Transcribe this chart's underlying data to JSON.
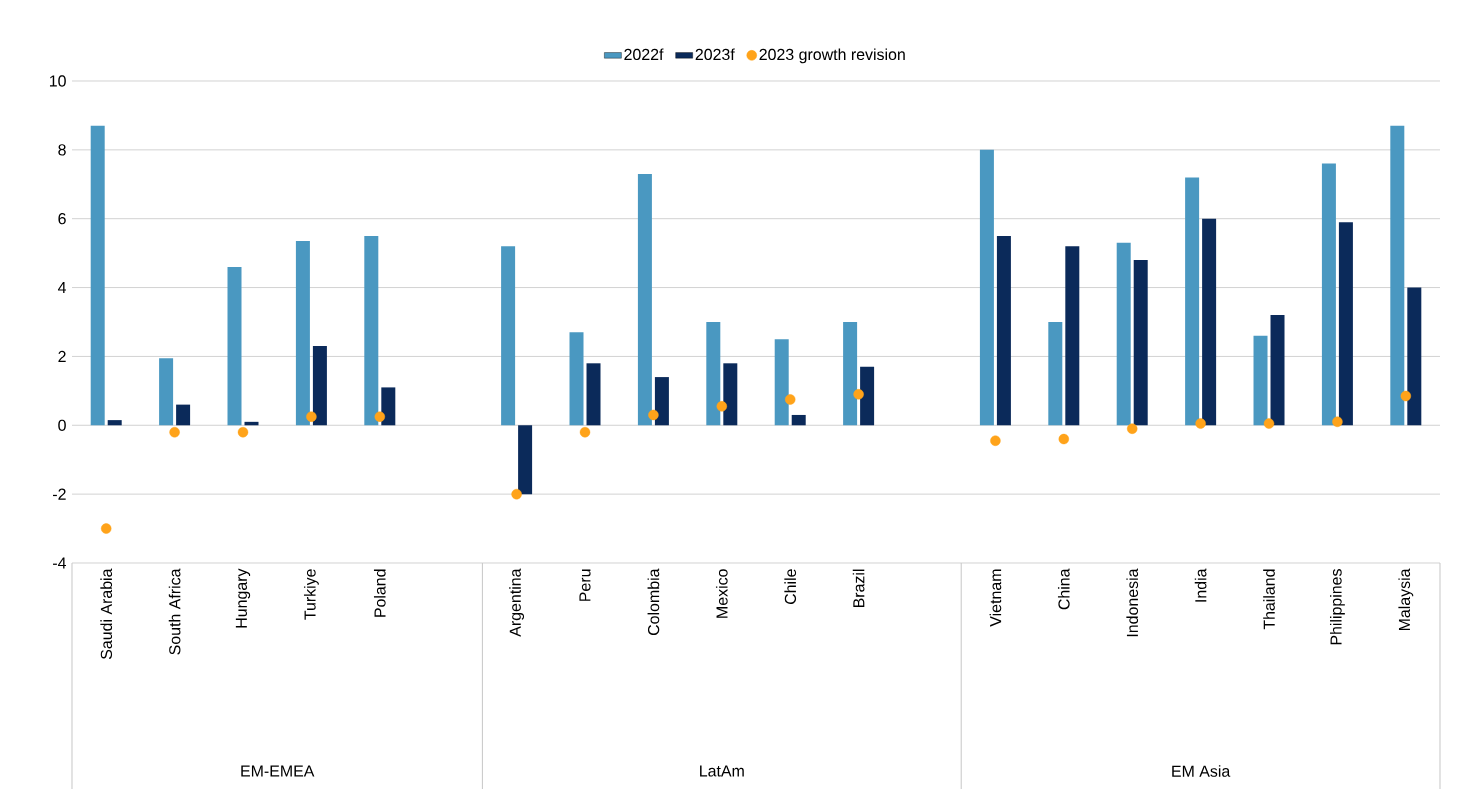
{
  "chart_data": {
    "type": "bar",
    "grid": "y",
    "legend": "top",
    "categories": [
      "Saudi Arabia",
      "South Africa",
      "Hungary",
      "Turkiye",
      "Poland",
      null,
      "Argentina",
      "Peru",
      "Colombia",
      "Mexico",
      "Chile",
      "Brazil",
      null,
      "Vietnam",
      "China",
      "Indonesia",
      "India",
      "Thailand",
      "Philippines",
      "Malaysia"
    ],
    "ylim": [
      -4,
      10
    ],
    "yticks": [
      -4,
      -2,
      0,
      2,
      4,
      6,
      8,
      10
    ],
    "annotations": [
      "EM-EMEA",
      "LatAm",
      "EM Asia"
    ],
    "series": [
      {
        "name": "2022f",
        "color": "#4a98c1",
        "values": [
          8.7,
          1.95,
          4.6,
          5.35,
          5.5,
          null,
          5.2,
          2.7,
          7.3,
          3.0,
          2.5,
          3.0,
          null,
          8.0,
          3.0,
          5.3,
          7.2,
          2.6,
          7.6,
          8.7
        ]
      },
      {
        "name": "2023f",
        "color": "#0b2a5a",
        "values": [
          0.15,
          0.6,
          0.1,
          2.3,
          1.1,
          null,
          -2.0,
          1.8,
          1.4,
          1.8,
          0.3,
          1.7,
          null,
          5.5,
          5.2,
          4.8,
          6.0,
          3.2,
          5.9,
          4.0
        ]
      },
      {
        "name": "2023 growth revision",
        "type": "scatter",
        "color": "#ffa31a",
        "values": [
          -3.0,
          -0.2,
          -0.2,
          0.25,
          0.25,
          null,
          -2.0,
          -0.2,
          0.3,
          0.55,
          0.75,
          0.9,
          null,
          -0.45,
          -0.4,
          -0.1,
          0.05,
          0.05,
          0.1,
          0.85
        ]
      }
    ]
  }
}
